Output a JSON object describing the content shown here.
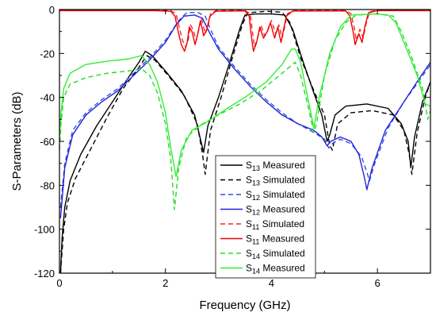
{
  "chart_data": {
    "type": "line",
    "title": "",
    "xlabel": "Frequency (GHz)",
    "ylabel": "S-Parameters (dB)",
    "xlim": [
      0,
      7
    ],
    "ylim": [
      -120,
      0
    ],
    "x_ticks": [
      0,
      2,
      4,
      6
    ],
    "y_ticks": [
      0,
      -20,
      -40,
      -60,
      -80,
      -100,
      -120
    ],
    "x_tick_labels": [
      "0",
      "2",
      "4",
      "6"
    ],
    "y_tick_labels": [
      "0",
      "-20",
      "-40",
      "-60",
      "-80",
      "-100",
      "-120"
    ],
    "grid": false,
    "legend_position": "bottom-right",
    "series": [
      {
        "name_main": "S",
        "name_sub": "13",
        "name_suffix": " Measured",
        "color": "#000000",
        "dash": "solid",
        "points": [
          [
            0.02,
            -120
          ],
          [
            0.05,
            -104
          ],
          [
            0.1,
            -90
          ],
          [
            0.2,
            -78
          ],
          [
            0.4,
            -66
          ],
          [
            0.7,
            -53
          ],
          [
            1.0,
            -42
          ],
          [
            1.3,
            -31
          ],
          [
            1.5,
            -24
          ],
          [
            1.62,
            -19
          ],
          [
            1.75,
            -21
          ],
          [
            2.0,
            -28
          ],
          [
            2.3,
            -37
          ],
          [
            2.55,
            -48
          ],
          [
            2.65,
            -58
          ],
          [
            2.72,
            -65
          ],
          [
            2.8,
            -53
          ],
          [
            3.0,
            -40
          ],
          [
            3.2,
            -25
          ],
          [
            3.4,
            -9
          ],
          [
            3.5,
            -2.5
          ],
          [
            3.7,
            -2
          ],
          [
            4.0,
            -2
          ],
          [
            4.25,
            -2.5
          ],
          [
            4.4,
            -9
          ],
          [
            4.6,
            -24
          ],
          [
            4.8,
            -38
          ],
          [
            4.95,
            -48
          ],
          [
            5.05,
            -60
          ],
          [
            5.1,
            -57
          ],
          [
            5.2,
            -48
          ],
          [
            5.4,
            -44
          ],
          [
            5.8,
            -43
          ],
          [
            6.2,
            -45
          ],
          [
            6.45,
            -52
          ],
          [
            6.58,
            -60
          ],
          [
            6.63,
            -72
          ],
          [
            6.7,
            -58
          ],
          [
            6.85,
            -42
          ],
          [
            7.0,
            -33
          ]
        ]
      },
      {
        "name_main": "S",
        "name_sub": "13",
        "name_suffix": " Simulated",
        "color": "#000000",
        "dash": "dashed",
        "points": [
          [
            0.02,
            -120
          ],
          [
            0.08,
            -100
          ],
          [
            0.15,
            -88
          ],
          [
            0.3,
            -77
          ],
          [
            0.6,
            -63
          ],
          [
            0.9,
            -49
          ],
          [
            1.2,
            -36
          ],
          [
            1.45,
            -28
          ],
          [
            1.65,
            -21
          ],
          [
            1.8,
            -23
          ],
          [
            2.05,
            -30
          ],
          [
            2.35,
            -39
          ],
          [
            2.6,
            -52
          ],
          [
            2.7,
            -66
          ],
          [
            2.75,
            -75
          ],
          [
            2.85,
            -55
          ],
          [
            3.05,
            -40
          ],
          [
            3.25,
            -23
          ],
          [
            3.45,
            -7
          ],
          [
            3.55,
            -1.5
          ],
          [
            3.9,
            -0.8
          ],
          [
            4.2,
            -1.2
          ],
          [
            4.35,
            -6
          ],
          [
            4.55,
            -22
          ],
          [
            4.8,
            -37
          ],
          [
            5.0,
            -48
          ],
          [
            5.1,
            -62
          ],
          [
            5.15,
            -64
          ],
          [
            5.25,
            -52
          ],
          [
            5.5,
            -47
          ],
          [
            5.9,
            -46
          ],
          [
            6.3,
            -48
          ],
          [
            6.5,
            -55
          ],
          [
            6.6,
            -66
          ],
          [
            6.65,
            -75
          ],
          [
            6.75,
            -56
          ],
          [
            6.9,
            -40
          ],
          [
            7.0,
            -33
          ]
        ]
      },
      {
        "name_main": "S",
        "name_sub": "12",
        "name_suffix": " Simulated",
        "color": "#3050e0",
        "dash": "dashed",
        "points": [
          [
            0.02,
            -90
          ],
          [
            0.1,
            -70
          ],
          [
            0.25,
            -55
          ],
          [
            0.5,
            -47
          ],
          [
            0.8,
            -41
          ],
          [
            1.1,
            -36
          ],
          [
            1.4,
            -29
          ],
          [
            1.7,
            -22
          ],
          [
            2.0,
            -14
          ],
          [
            2.25,
            -5
          ],
          [
            2.4,
            -1.5
          ],
          [
            2.6,
            -1.2
          ],
          [
            2.75,
            -3
          ],
          [
            2.85,
            -9
          ],
          [
            3.0,
            -17
          ],
          [
            3.3,
            -26
          ],
          [
            3.6,
            -34
          ],
          [
            3.9,
            -41
          ],
          [
            4.2,
            -47
          ],
          [
            4.5,
            -52
          ],
          [
            4.8,
            -56
          ],
          [
            5.0,
            -59
          ],
          [
            5.08,
            -63
          ],
          [
            5.15,
            -61
          ],
          [
            5.3,
            -59
          ],
          [
            5.5,
            -61
          ],
          [
            5.7,
            -67
          ],
          [
            5.8,
            -74
          ],
          [
            5.85,
            -78
          ],
          [
            5.95,
            -70
          ],
          [
            6.2,
            -54
          ],
          [
            6.5,
            -42
          ],
          [
            6.8,
            -32
          ],
          [
            7.0,
            -25
          ]
        ]
      },
      {
        "name_main": "S",
        "name_sub": "12",
        "name_suffix": " Measured",
        "color": "#2222dd",
        "dash": "solid",
        "points": [
          [
            0.02,
            -95
          ],
          [
            0.1,
            -72
          ],
          [
            0.25,
            -57
          ],
          [
            0.5,
            -48
          ],
          [
            0.8,
            -42
          ],
          [
            1.1,
            -37
          ],
          [
            1.4,
            -30
          ],
          [
            1.7,
            -23
          ],
          [
            2.0,
            -15
          ],
          [
            2.2,
            -7
          ],
          [
            2.35,
            -3
          ],
          [
            2.55,
            -2.5
          ],
          [
            2.7,
            -4
          ],
          [
            2.82,
            -10
          ],
          [
            3.0,
            -18
          ],
          [
            3.3,
            -27
          ],
          [
            3.6,
            -35
          ],
          [
            3.9,
            -42
          ],
          [
            4.2,
            -48
          ],
          [
            4.5,
            -52
          ],
          [
            4.8,
            -55
          ],
          [
            4.95,
            -58
          ],
          [
            5.05,
            -62
          ],
          [
            5.12,
            -60
          ],
          [
            5.3,
            -58
          ],
          [
            5.5,
            -60
          ],
          [
            5.65,
            -66
          ],
          [
            5.75,
            -76
          ],
          [
            5.8,
            -82
          ],
          [
            5.9,
            -72
          ],
          [
            6.15,
            -55
          ],
          [
            6.5,
            -42
          ],
          [
            6.8,
            -31
          ],
          [
            7.0,
            -24
          ]
        ]
      },
      {
        "name_main": "S",
        "name_sub": "11",
        "name_suffix": " Simulated",
        "color": "#ff2020",
        "dash": "dashed",
        "points": [
          [
            0.0,
            -0.3
          ],
          [
            1.8,
            -0.3
          ],
          [
            2.1,
            -0.5
          ],
          [
            2.2,
            -2
          ],
          [
            2.26,
            -8
          ],
          [
            2.32,
            -14
          ],
          [
            2.38,
            -17
          ],
          [
            2.43,
            -14
          ],
          [
            2.47,
            -7
          ],
          [
            2.52,
            -9
          ],
          [
            2.58,
            -14
          ],
          [
            2.63,
            -9
          ],
          [
            2.68,
            -4
          ],
          [
            2.75,
            -11
          ],
          [
            2.8,
            -8
          ],
          [
            2.85,
            -2
          ],
          [
            2.95,
            -0.5
          ],
          [
            3.5,
            -0.4
          ],
          [
            3.6,
            -2
          ],
          [
            3.64,
            -10
          ],
          [
            3.68,
            -17
          ],
          [
            3.74,
            -13
          ],
          [
            3.8,
            -7
          ],
          [
            3.87,
            -12
          ],
          [
            3.94,
            -9
          ],
          [
            4.0,
            -5
          ],
          [
            4.08,
            -11
          ],
          [
            4.14,
            -7
          ],
          [
            4.2,
            -13
          ],
          [
            4.25,
            -8
          ],
          [
            4.3,
            -2
          ],
          [
            4.4,
            -0.5
          ],
          [
            5.4,
            -0.4
          ],
          [
            5.5,
            -2
          ],
          [
            5.56,
            -8
          ],
          [
            5.6,
            -14
          ],
          [
            5.67,
            -9
          ],
          [
            5.73,
            -13
          ],
          [
            5.78,
            -7
          ],
          [
            5.85,
            -1
          ],
          [
            6.0,
            -0.3
          ],
          [
            7.0,
            -0.3
          ]
        ]
      },
      {
        "name_main": "S",
        "name_sub": "11",
        "name_suffix": " Measured",
        "color": "#ee0000",
        "dash": "solid",
        "points": [
          [
            0.0,
            -0.5
          ],
          [
            1.8,
            -0.5
          ],
          [
            2.1,
            -0.8
          ],
          [
            2.18,
            -3
          ],
          [
            2.24,
            -10
          ],
          [
            2.3,
            -16
          ],
          [
            2.36,
            -19
          ],
          [
            2.41,
            -15
          ],
          [
            2.45,
            -8
          ],
          [
            2.5,
            -10
          ],
          [
            2.56,
            -16
          ],
          [
            2.61,
            -11
          ],
          [
            2.66,
            -5
          ],
          [
            2.72,
            -12
          ],
          [
            2.78,
            -9
          ],
          [
            2.84,
            -3
          ],
          [
            2.95,
            -0.8
          ],
          [
            3.5,
            -0.6
          ],
          [
            3.58,
            -3
          ],
          [
            3.62,
            -12
          ],
          [
            3.66,
            -19
          ],
          [
            3.72,
            -15
          ],
          [
            3.78,
            -8
          ],
          [
            3.85,
            -13
          ],
          [
            3.92,
            -10
          ],
          [
            3.98,
            -6
          ],
          [
            4.06,
            -13
          ],
          [
            4.12,
            -8
          ],
          [
            4.18,
            -15
          ],
          [
            4.23,
            -9
          ],
          [
            4.28,
            -3
          ],
          [
            4.4,
            -0.7
          ],
          [
            5.4,
            -0.6
          ],
          [
            5.48,
            -3
          ],
          [
            5.54,
            -10
          ],
          [
            5.58,
            -16
          ],
          [
            5.65,
            -11
          ],
          [
            5.71,
            -15
          ],
          [
            5.76,
            -8
          ],
          [
            5.83,
            -1.5
          ],
          [
            6.0,
            -0.5
          ],
          [
            7.0,
            -0.5
          ]
        ]
      },
      {
        "name_main": "S",
        "name_sub": "14",
        "name_suffix": " Simulated",
        "color": "#22dd22",
        "dash": "dashed",
        "points": [
          [
            0.0,
            -64
          ],
          [
            0.03,
            -52
          ],
          [
            0.08,
            -40
          ],
          [
            0.2,
            -34
          ],
          [
            0.5,
            -31
          ],
          [
            0.9,
            -29
          ],
          [
            1.3,
            -28
          ],
          [
            1.55,
            -27
          ],
          [
            1.7,
            -30
          ],
          [
            1.85,
            -38
          ],
          [
            2.0,
            -52
          ],
          [
            2.1,
            -68
          ],
          [
            2.17,
            -91
          ],
          [
            2.25,
            -72
          ],
          [
            2.4,
            -58
          ],
          [
            2.7,
            -52
          ],
          [
            3.0,
            -48
          ],
          [
            3.4,
            -43
          ],
          [
            3.8,
            -37
          ],
          [
            4.1,
            -31
          ],
          [
            4.35,
            -26
          ],
          [
            4.45,
            -24
          ],
          [
            4.55,
            -30
          ],
          [
            4.7,
            -45
          ],
          [
            4.8,
            -56
          ],
          [
            4.85,
            -52
          ],
          [
            5.0,
            -30
          ],
          [
            5.2,
            -14
          ],
          [
            5.4,
            -6
          ],
          [
            5.6,
            -2.5
          ],
          [
            6.0,
            -2
          ],
          [
            6.3,
            -3
          ],
          [
            6.45,
            -10
          ],
          [
            6.65,
            -22
          ],
          [
            6.85,
            -36
          ],
          [
            6.95,
            -50
          ],
          [
            7.0,
            -46
          ]
        ]
      },
      {
        "name_main": "S",
        "name_sub": "14",
        "name_suffix": " Measured",
        "color": "#33ee33",
        "dash": "solid",
        "points": [
          [
            0.0,
            -58
          ],
          [
            0.03,
            -47
          ],
          [
            0.08,
            -36
          ],
          [
            0.2,
            -29
          ],
          [
            0.5,
            -25
          ],
          [
            0.9,
            -23.5
          ],
          [
            1.3,
            -22.5
          ],
          [
            1.55,
            -21
          ],
          [
            1.7,
            -25
          ],
          [
            1.85,
            -33
          ],
          [
            2.0,
            -47
          ],
          [
            2.1,
            -63
          ],
          [
            2.2,
            -76
          ],
          [
            2.3,
            -64
          ],
          [
            2.5,
            -55
          ],
          [
            2.8,
            -51
          ],
          [
            3.1,
            -46
          ],
          [
            3.5,
            -40
          ],
          [
            3.9,
            -33
          ],
          [
            4.2,
            -25
          ],
          [
            4.38,
            -18
          ],
          [
            4.45,
            -18
          ],
          [
            4.55,
            -24
          ],
          [
            4.65,
            -36
          ],
          [
            4.75,
            -48
          ],
          [
            4.8,
            -54
          ],
          [
            4.9,
            -40
          ],
          [
            5.1,
            -20
          ],
          [
            5.3,
            -8
          ],
          [
            5.5,
            -2.5
          ],
          [
            6.0,
            -2
          ],
          [
            6.2,
            -2.5
          ],
          [
            6.35,
            -6
          ],
          [
            6.55,
            -18
          ],
          [
            6.75,
            -30
          ],
          [
            6.9,
            -43
          ],
          [
            7.0,
            -44
          ]
        ]
      }
    ]
  }
}
